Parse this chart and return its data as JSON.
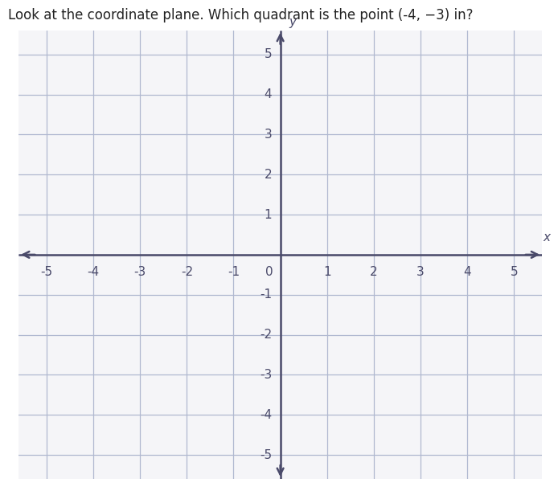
{
  "title": "Look at the coordinate plane. Which quadrant is the point (-4, −3) in?",
  "title_fontsize": 12,
  "xlim": [
    -5.6,
    5.6
  ],
  "ylim": [
    -5.6,
    5.6
  ],
  "xticks": [
    -5,
    -4,
    -3,
    -2,
    -1,
    0,
    1,
    2,
    3,
    4,
    5
  ],
  "yticks": [
    -5,
    -4,
    -3,
    -2,
    -1,
    0,
    1,
    2,
    3,
    4,
    5
  ],
  "xlabel": "x",
  "ylabel": "y",
  "grid_color": "#b0b8d0",
  "axis_color": "#4a4a6a",
  "background_color": "#f5f5f8",
  "fig_background": "#ffffff",
  "tick_fontsize": 11,
  "axis_linewidth": 1.8,
  "grid_linewidth": 0.9,
  "arrow_mutation_scale": 14
}
